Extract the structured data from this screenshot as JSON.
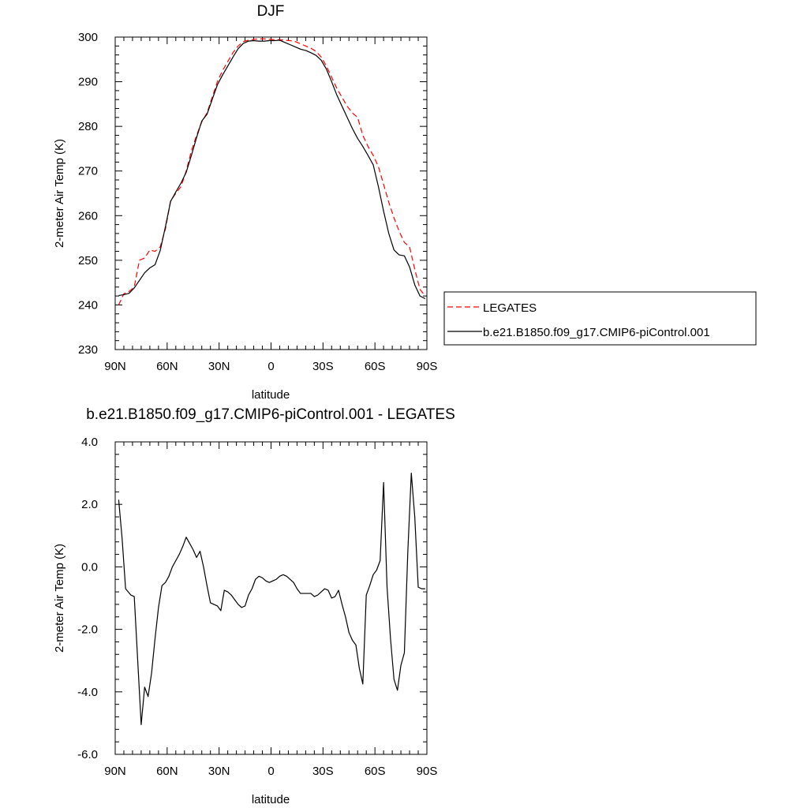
{
  "chart_data": [
    {
      "type": "line",
      "title": "DJF",
      "xlabel": "latitude",
      "ylabel": "2-meter Air Temp (K)",
      "xlim": [
        -90,
        90
      ],
      "ylim": [
        230,
        300
      ],
      "xticks": [
        {
          "value": -90,
          "label": "90N"
        },
        {
          "value": -60,
          "label": "60N"
        },
        {
          "value": -30,
          "label": "30N"
        },
        {
          "value": 0,
          "label": "0"
        },
        {
          "value": 30,
          "label": "30S"
        },
        {
          "value": 60,
          "label": "60S"
        },
        {
          "value": 90,
          "label": "90S"
        }
      ],
      "yticks": [
        {
          "value": 230,
          "label": "230"
        },
        {
          "value": 240,
          "label": "240"
        },
        {
          "value": 250,
          "label": "250"
        },
        {
          "value": 260,
          "label": "260"
        },
        {
          "value": 270,
          "label": "270"
        },
        {
          "value": 280,
          "label": "280"
        },
        {
          "value": 290,
          "label": "290"
        },
        {
          "value": 300,
          "label": "300"
        }
      ],
      "legend_position": "right",
      "series": [
        {
          "name": "LEGATES",
          "color": "#ff0000",
          "dash": true,
          "x": [
            -88,
            -85,
            -82,
            -79,
            -76,
            -73,
            -70,
            -67,
            -64,
            -61,
            -58,
            -55,
            -52,
            -49,
            -46,
            -43,
            -40,
            -37,
            -34,
            -31,
            -28,
            -25,
            -22,
            -19,
            -16,
            -13,
            -10,
            -7,
            -4,
            -1,
            2,
            5,
            8,
            11,
            14,
            17,
            20,
            23,
            26,
            29,
            32,
            35,
            38,
            41,
            44,
            47,
            50,
            53,
            56,
            59,
            62,
            65,
            68,
            71,
            74,
            77,
            80,
            83,
            86,
            89
          ],
          "values": [
            240.0,
            242.5,
            243.0,
            244.0,
            250.0,
            250.5,
            252.3,
            252.0,
            253.0,
            257.0,
            263.3,
            265.0,
            266.5,
            270.0,
            274.5,
            278.0,
            281.0,
            283.0,
            286.5,
            290.0,
            292.5,
            294.5,
            296.5,
            298.0,
            299.0,
            299.3,
            299.5,
            299.6,
            299.6,
            299.5,
            299.4,
            299.4,
            299.3,
            299.2,
            299.0,
            298.5,
            298.0,
            297.5,
            296.8,
            295.5,
            293.5,
            291.0,
            288.5,
            286.5,
            284.5,
            283.0,
            282.0,
            278.0,
            275.5,
            273.5,
            271.0,
            267.0,
            263.0,
            259.5,
            256.5,
            254.0,
            253.0,
            248.0,
            243.5,
            242.0
          ]
        },
        {
          "name": "b.e21.B1850.f09_g17.CMIP6-piControl.001",
          "color": "#000000",
          "dash": false,
          "x": [
            -88,
            -85,
            -82,
            -79,
            -76,
            -73,
            -70,
            -67,
            -64,
            -61,
            -58,
            -55,
            -52,
            -49,
            -46,
            -43,
            -40,
            -37,
            -34,
            -31,
            -28,
            -25,
            -22,
            -19,
            -16,
            -13,
            -10,
            -7,
            -4,
            -1,
            2,
            5,
            8,
            11,
            14,
            17,
            20,
            23,
            26,
            29,
            32,
            35,
            38,
            41,
            44,
            47,
            50,
            53,
            56,
            59,
            62,
            65,
            68,
            71,
            74,
            77,
            80,
            83,
            86,
            89
          ],
          "values": [
            242.1,
            242.3,
            242.6,
            243.8,
            245.5,
            247.2,
            248.3,
            249.0,
            252.2,
            257.5,
            263.2,
            265.3,
            267.3,
            269.7,
            273.5,
            277.5,
            281.2,
            282.7,
            286.0,
            289.3,
            291.5,
            293.5,
            295.5,
            297.4,
            298.6,
            299.1,
            299.2,
            299.1,
            299.1,
            299.2,
            299.2,
            299.3,
            298.8,
            298.3,
            297.8,
            297.3,
            297.0,
            296.5,
            295.9,
            294.8,
            292.8,
            290.0,
            287.0,
            284.5,
            282.0,
            279.5,
            277.3,
            275.5,
            273.5,
            271.4,
            266.5,
            261.0,
            256.0,
            252.3,
            251.2,
            251.0,
            248.5,
            244.5,
            242.0,
            241.4
          ]
        }
      ]
    },
    {
      "type": "line",
      "title": "b.e21.B1850.f09_g17.CMIP6-piControl.001 - LEGATES",
      "xlabel": "latitude",
      "ylabel": "2-meter Air Temp (K)",
      "xlim": [
        -90,
        90
      ],
      "ylim": [
        -6,
        4
      ],
      "xticks": [
        {
          "value": -90,
          "label": "90N"
        },
        {
          "value": -60,
          "label": "60N"
        },
        {
          "value": -30,
          "label": "30N"
        },
        {
          "value": 0,
          "label": "0"
        },
        {
          "value": 30,
          "label": "30S"
        },
        {
          "value": 60,
          "label": "60S"
        },
        {
          "value": 90,
          "label": "90S"
        }
      ],
      "yticks": [
        {
          "value": -6,
          "label": "-6.0"
        },
        {
          "value": -4,
          "label": "-4.0"
        },
        {
          "value": -2,
          "label": "-2.0"
        },
        {
          "value": 0,
          "label": "0.0"
        },
        {
          "value": 2,
          "label": "2.0"
        },
        {
          "value": 4,
          "label": "4.0"
        }
      ],
      "series": [
        {
          "color": "#000000",
          "dash": false,
          "x": [
            -88,
            -86,
            -84,
            -81,
            -79,
            -77,
            -75,
            -73,
            -71,
            -69,
            -67,
            -65,
            -63,
            -61,
            -59,
            -57,
            -55,
            -53,
            -51,
            -49,
            -47,
            -45,
            -43,
            -41,
            -39,
            -37,
            -35,
            -33,
            -31,
            -29,
            -27,
            -25,
            -23,
            -21,
            -19,
            -17,
            -15,
            -13,
            -11,
            -9,
            -7,
            -5,
            -3,
            -1,
            1,
            3,
            5,
            7,
            9,
            11,
            13,
            15,
            17,
            19,
            21,
            23,
            25,
            27,
            29,
            31,
            33,
            35,
            37,
            39,
            41,
            43,
            45,
            47,
            49,
            51,
            53,
            55,
            57,
            59,
            61,
            63,
            65,
            67,
            69,
            71,
            73,
            75,
            77,
            79,
            81,
            83,
            85,
            87,
            89
          ],
          "values": [
            2.15,
            0.9,
            -0.7,
            -0.9,
            -0.95,
            -3.0,
            -5.05,
            -3.85,
            -4.15,
            -3.4,
            -2.3,
            -1.3,
            -0.6,
            -0.5,
            -0.3,
            0.0,
            0.2,
            0.4,
            0.65,
            0.95,
            0.75,
            0.55,
            0.3,
            0.5,
            0.0,
            -0.6,
            -1.15,
            -1.2,
            -1.25,
            -1.4,
            -0.75,
            -0.8,
            -0.9,
            -1.05,
            -1.2,
            -1.3,
            -1.25,
            -0.9,
            -0.7,
            -0.4,
            -0.3,
            -0.35,
            -0.45,
            -0.5,
            -0.45,
            -0.4,
            -0.3,
            -0.25,
            -0.3,
            -0.4,
            -0.5,
            -0.7,
            -0.85,
            -0.85,
            -0.85,
            -0.85,
            -0.95,
            -0.9,
            -0.8,
            -0.7,
            -0.75,
            -1.0,
            -0.95,
            -0.75,
            -1.2,
            -1.6,
            -2.1,
            -2.35,
            -2.5,
            -3.25,
            -3.75,
            -0.9,
            -0.6,
            -0.25,
            -0.1,
            0.2,
            2.7,
            -0.65,
            -2.3,
            -3.6,
            -3.95,
            -3.15,
            -2.75,
            0.5,
            3.0,
            1.6,
            -0.65,
            -0.7,
            -0.7
          ]
        }
      ]
    }
  ]
}
